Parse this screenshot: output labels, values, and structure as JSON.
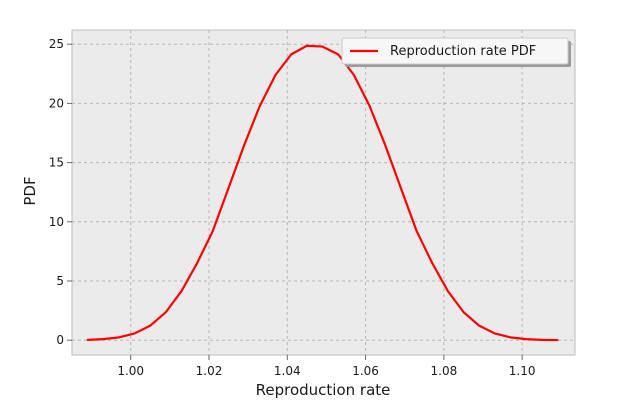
{
  "chart_data": {
    "type": "line",
    "title": "",
    "xlabel": "Reproduction rate",
    "ylabel": "PDF",
    "xlim": [
      0.985,
      1.1135
    ],
    "ylim": [
      -1.25,
      26.2
    ],
    "x_ticks": [
      1.0,
      1.02,
      1.04,
      1.06,
      1.08,
      1.1
    ],
    "x_tick_labels": [
      "1.00",
      "1.02",
      "1.04",
      "1.06",
      "1.08",
      "1.10"
    ],
    "y_ticks": [
      0,
      5,
      10,
      15,
      20,
      25
    ],
    "y_tick_labels": [
      "0",
      "5",
      "10",
      "15",
      "20",
      "25"
    ],
    "grid": true,
    "grid_style": "dashed",
    "background_color": "#ebebeb",
    "legend": {
      "position": "top-right",
      "entries": [
        "Reproduction rate PDF"
      ]
    },
    "series": [
      {
        "name": "Reproduction rate PDF",
        "color": "#ff0000",
        "x": [
          0.989,
          0.993,
          0.997,
          1.001,
          1.005,
          1.009,
          1.013,
          1.017,
          1.021,
          1.025,
          1.029,
          1.033,
          1.037,
          1.041,
          1.045,
          1.049,
          1.053,
          1.057,
          1.061,
          1.065,
          1.069,
          1.073,
          1.077,
          1.081,
          1.085,
          1.089,
          1.093,
          1.097,
          1.101,
          1.105,
          1.109
        ],
        "y": [
          0.03,
          0.09,
          0.24,
          0.57,
          1.23,
          2.38,
          4.16,
          6.53,
          9.25,
          12.87,
          16.49,
          19.8,
          22.41,
          24.14,
          24.87,
          24.8,
          24.14,
          22.41,
          19.8,
          16.49,
          12.87,
          9.25,
          6.53,
          4.16,
          2.38,
          1.23,
          0.57,
          0.24,
          0.09,
          0.03,
          0.01
        ]
      }
    ]
  }
}
